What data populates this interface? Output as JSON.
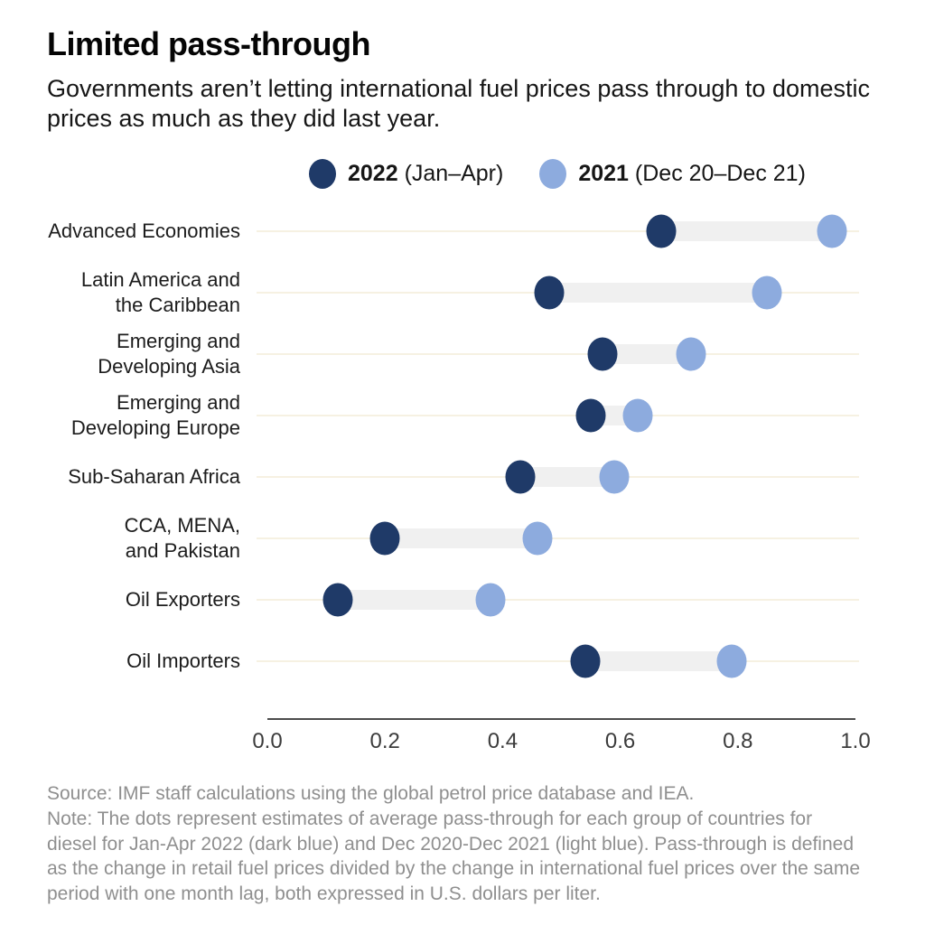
{
  "header": {
    "title": "Limited pass-through",
    "subtitle": "Governments aren’t letting international fuel prices pass through to domestic prices as much as they did last year."
  },
  "legend": [
    {
      "year": "2022",
      "period": " (Jan–Apr)",
      "color": "#1f3a68"
    },
    {
      "year": "2021",
      "period": " (Dec 20–Dec 21)",
      "color": "#8dabde"
    }
  ],
  "chart_data": {
    "type": "scatter",
    "subtype": "dumbbell-dot-plot",
    "categories": [
      "Advanced Economies",
      "Latin America and the Caribbean",
      "Emerging and Developing Asia",
      "Emerging and Developing Europe",
      "Sub-Saharan Africa",
      "CCA, MENA, and Pakistan",
      "Oil Exporters",
      "Oil Importers"
    ],
    "label_lines": [
      [
        "Advanced Economies"
      ],
      [
        "Latin America and",
        "the Caribbean"
      ],
      [
        "Emerging and",
        "Developing Asia"
      ],
      [
        "Emerging and",
        "Developing Europe"
      ],
      [
        "Sub-Saharan Africa"
      ],
      [
        "CCA, MENA,",
        "and Pakistan"
      ],
      [
        "Oil Exporters"
      ],
      [
        "Oil Importers"
      ]
    ],
    "series": [
      {
        "name": "2022 (Jan–Apr)",
        "color": "#1f3a68",
        "values": [
          0.67,
          0.48,
          0.57,
          0.55,
          0.43,
          0.2,
          0.12,
          0.54
        ]
      },
      {
        "name": "2021 (Dec 20–Dec 21)",
        "color": "#8dabde",
        "values": [
          0.96,
          0.85,
          0.72,
          0.63,
          0.59,
          0.46,
          0.38,
          0.79
        ]
      }
    ],
    "xlim": [
      0.0,
      1.0
    ],
    "x_ticks": [
      {
        "value": 0.0,
        "label": "0.0"
      },
      {
        "value": 0.2,
        "label": "0.2"
      },
      {
        "value": 0.4,
        "label": "0.4"
      },
      {
        "value": 0.6,
        "label": "0.6"
      },
      {
        "value": 0.8,
        "label": "0.8"
      },
      {
        "value": 1.0,
        "label": "1.0"
      }
    ],
    "grid": "row-guides",
    "legend_position": "top",
    "colors": {
      "connector": "#f0f0f0",
      "row_guide": "#f6f1e2",
      "axis_line": "#4c4c4c"
    }
  },
  "footer": {
    "source": "Source: IMF staff calculations using the global petrol price database and IEA.",
    "note": "Note: The dots  represent estimates of average pass-through for each group of countries for diesel for Jan-Apr 2022 (dark blue) and Dec 2020-Dec 2021 (light blue). Pass-through is defined as the change in retail fuel prices divided by the change in international fuel prices over the same period with one month lag, both expressed in U.S. dollars per liter."
  }
}
